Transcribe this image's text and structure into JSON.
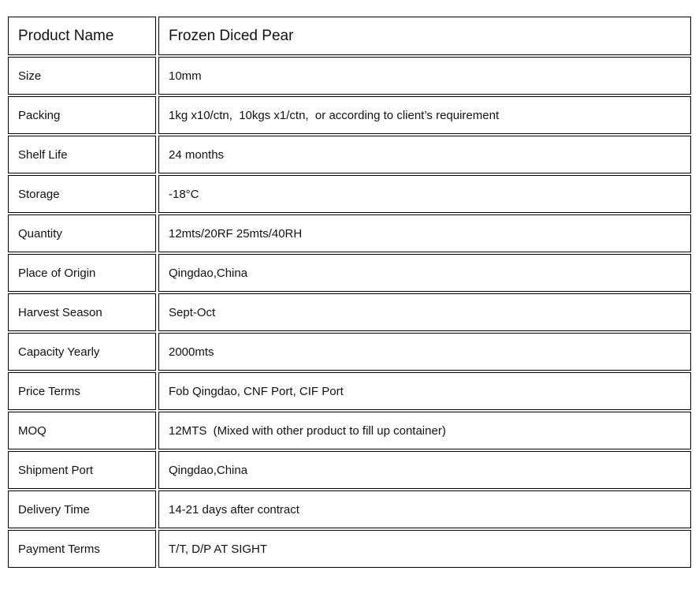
{
  "table": {
    "rows": [
      {
        "label": "Product Name",
        "value": "Frozen Diced Pear"
      },
      {
        "label": "Size",
        "value": "10mm"
      },
      {
        "label": "Packing",
        "value": "1kg x10/ctn,  10kgs x1/ctn,  or according to client’s requirement"
      },
      {
        "label": "Shelf Life",
        "value": "24 months"
      },
      {
        "label": "Storage",
        "value": "-18°C"
      },
      {
        "label": "Quantity",
        "value": "12mts/20RF 25mts/40RH"
      },
      {
        "label": "Place of Origin",
        "value": "Qingdao,China"
      },
      {
        "label": "Harvest Season",
        "value": "Sept-Oct"
      },
      {
        "label": "Capacity Yearly",
        "value": "2000mts"
      },
      {
        "label": "Price Terms",
        "value": "Fob Qingdao, CNF Port, CIF Port"
      },
      {
        "label": "MOQ",
        "value": "12MTS  (Mixed with other product to fill up container)"
      },
      {
        "label": "Shipment Port",
        "value": "Qingdao,China"
      },
      {
        "label": "Delivery Time",
        "value": "14-21 days after contract"
      },
      {
        "label": "Payment Terms",
        "value": "T/T, D/P AT SIGHT"
      }
    ]
  }
}
